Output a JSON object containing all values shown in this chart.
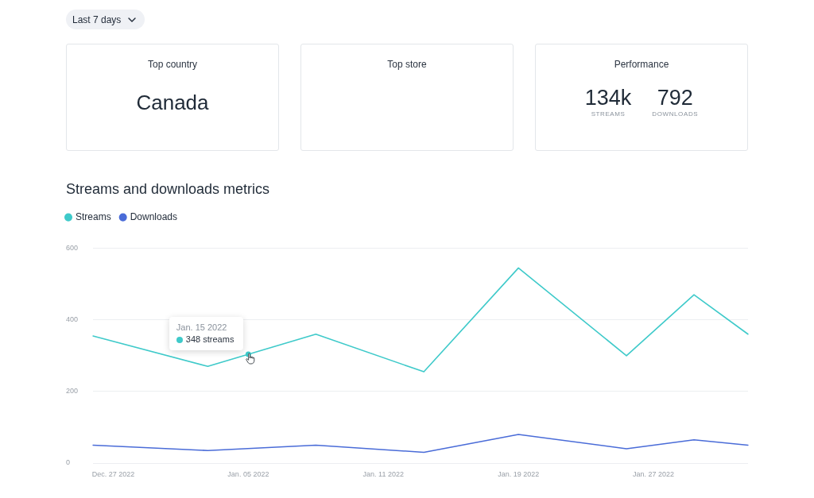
{
  "chart_data": [
    {
      "type": "other",
      "annotations": [
        "Last 7 days"
      ]
    },
    {
      "type": "other",
      "title": "Top country",
      "annotations": [
        "Canada"
      ]
    },
    {
      "type": "other",
      "title": "Top store"
    },
    {
      "type": "other",
      "title": "Performance",
      "annotations": [
        "134k",
        "STREAMS",
        "792",
        "DOWNLOADS"
      ]
    },
    {
      "type": "line",
      "title": "Streams and downloads metrics",
      "categories": [
        null,
        null,
        null,
        "Dec. 27 2022",
        null,
        null,
        null,
        null,
        null,
        null,
        null,
        null,
        null,
        null,
        null,
        null,
        null,
        null,
        null,
        null,
        null,
        null,
        null,
        "Jan. 05 2022",
        null,
        null,
        null,
        null,
        null,
        null,
        null,
        null,
        null,
        null,
        null,
        null,
        null,
        null,
        null,
        null,
        null,
        null,
        null,
        "Jan. 11 2022",
        null,
        null,
        null,
        null,
        null,
        null,
        null,
        null,
        null,
        null,
        null,
        null,
        null,
        null,
        null,
        null,
        null,
        null,
        null,
        "Jan. 19 2022",
        null,
        null,
        null,
        null,
        null,
        null,
        null,
        null,
        null,
        null,
        null,
        null,
        null,
        null,
        null,
        null,
        null,
        null,
        null,
        "Jan. 27 2022",
        null,
        null,
        null,
        null,
        null,
        null,
        null,
        null,
        null,
        null,
        null,
        null,
        null,
        null
      ],
      "series": [
        {
          "name": "Streams",
          "color": "#3fcaca",
          "values": [
            355,
            null,
            null,
            null,
            null,
            null,
            null,
            null,
            null,
            null,
            null,
            null,
            null,
            null,
            null,
            null,
            null,
            270,
            null,
            null,
            null,
            null,
            null,
            null,
            null,
            null,
            null,
            null,
            null,
            null,
            null,
            null,
            null,
            360,
            null,
            null,
            null,
            null,
            null,
            null,
            null,
            null,
            null,
            null,
            null,
            null,
            null,
            null,
            null,
            255,
            null,
            null,
            null,
            null,
            null,
            null,
            null,
            null,
            null,
            null,
            null,
            null,
            null,
            545,
            null,
            null,
            null,
            null,
            null,
            null,
            null,
            null,
            null,
            null,
            null,
            null,
            null,
            null,
            null,
            300,
            null,
            null,
            null,
            null,
            null,
            null,
            null,
            null,
            null,
            470,
            null,
            null,
            null,
            null,
            null,
            null,
            null,
            360
          ]
        },
        {
          "name": "Downloads",
          "color": "#4a6cd8",
          "values": [
            50,
            null,
            null,
            null,
            null,
            null,
            null,
            null,
            null,
            null,
            null,
            null,
            null,
            null,
            null,
            null,
            null,
            35,
            null,
            null,
            null,
            null,
            null,
            null,
            null,
            null,
            null,
            null,
            null,
            null,
            null,
            null,
            null,
            50,
            null,
            null,
            null,
            null,
            null,
            null,
            null,
            null,
            null,
            null,
            null,
            null,
            null,
            null,
            null,
            30,
            null,
            null,
            null,
            null,
            null,
            null,
            null,
            null,
            null,
            null,
            null,
            null,
            null,
            80,
            null,
            null,
            null,
            null,
            null,
            null,
            null,
            null,
            null,
            null,
            null,
            null,
            null,
            null,
            null,
            40,
            null,
            null,
            null,
            null,
            null,
            null,
            null,
            null,
            null,
            65,
            null,
            null,
            null,
            null,
            null,
            null,
            null,
            50
          ]
        }
      ],
      "ylim": [
        0,
        600
      ],
      "yticks": [
        0,
        200,
        400,
        600
      ],
      "grid": "y",
      "legend": "top left",
      "marker": "none",
      "line_style": "solid",
      "annotations": [
        "Jan. 15 2022",
        {
          "text": "348 streams",
          "x": "Jan. 05 2022",
          "y": 304
        }
      ]
    }
  ]
}
